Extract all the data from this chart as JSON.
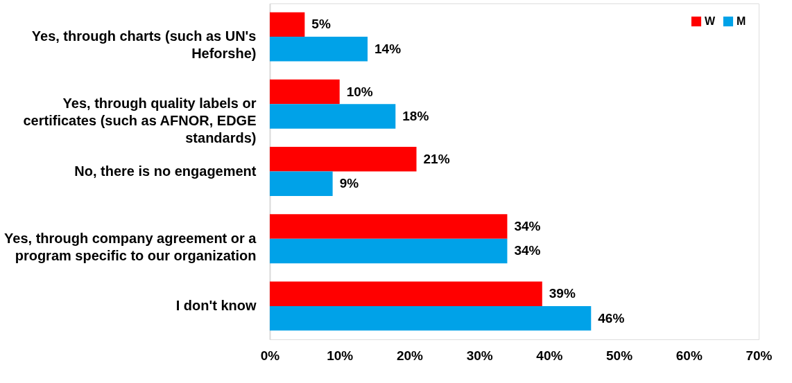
{
  "chart_data": {
    "type": "bar",
    "orientation": "horizontal",
    "categories": [
      "Yes, through charts (such as UN's Heforshe)",
      "Yes, through quality labels or certificates (such as AFNOR, EDGE standards)",
      "No, there is no engagement",
      "Yes, through company agreement or a program specific to our organization",
      "I don't know"
    ],
    "series": [
      {
        "name": "W",
        "color": "#ff0000",
        "values": [
          5,
          10,
          21,
          34,
          39
        ],
        "value_labels": [
          "5%",
          "10%",
          "21%",
          "34%",
          "39%"
        ]
      },
      {
        "name": "M",
        "color": "#00a2e8",
        "values": [
          14,
          18,
          9,
          34,
          46
        ],
        "value_labels": [
          "14%",
          "18%",
          "9%",
          "34%",
          "46%"
        ]
      }
    ],
    "xlim": [
      0,
      70
    ],
    "xticks": [
      {
        "value": 0,
        "label": "0%"
      },
      {
        "value": 10,
        "label": "10%"
      },
      {
        "value": 20,
        "label": "20%"
      },
      {
        "value": 30,
        "label": "30%"
      },
      {
        "value": 40,
        "label": "40%"
      },
      {
        "value": 50,
        "label": "50%"
      },
      {
        "value": 60,
        "label": "60%"
      },
      {
        "value": 70,
        "label": "70%"
      }
    ],
    "grid": false,
    "legend": "top right"
  }
}
